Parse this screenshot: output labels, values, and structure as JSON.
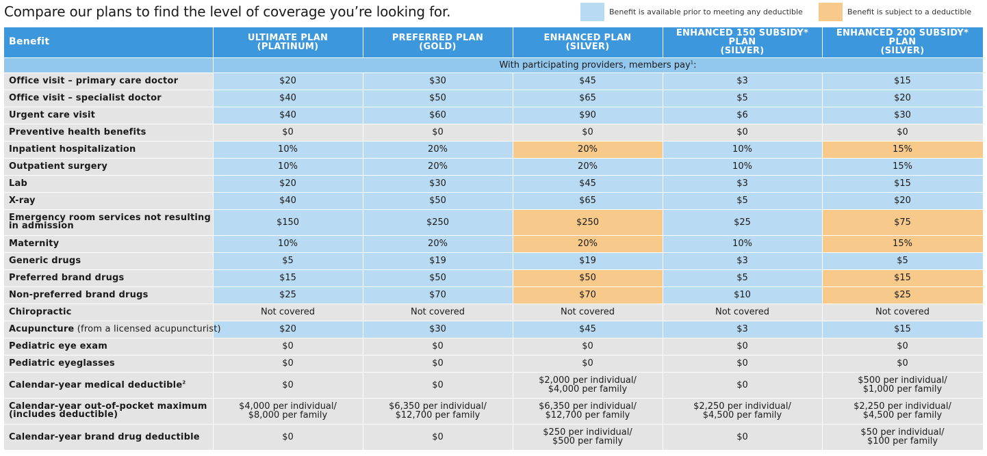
{
  "title": "Compare our plans to find the level of coverage you’re looking for.",
  "legend": {
    "available": {
      "label": "Benefit is available prior to meeting any deductible",
      "color": "#b8daf3"
    },
    "deductible": {
      "label": "Benefit is subject to a deductible",
      "color": "#f7c98a"
    }
  },
  "table": {
    "benefit_header": "Benefit",
    "plans": [
      {
        "line1": "ULTIMATE PLAN",
        "line2": "(PLATINUM)"
      },
      {
        "line1": "PREFERRED PLAN",
        "line2": "(GOLD)"
      },
      {
        "line1": "ENHANCED PLAN",
        "line2": "(SILVER)"
      },
      {
        "line1": "ENHANCED 150 SUBSIDY* PLAN",
        "line2": "(SILVER)"
      },
      {
        "line1": "ENHANCED 200 SUBSIDY* PLAN",
        "line2": "(SILVER)"
      }
    ],
    "subheader": "With participating providers, members pay",
    "subheader_mark": "1",
    "subheader_tail": ":",
    "rows": [
      {
        "benefit": "Office visit – primary care doctor",
        "values": [
          "$20",
          "$30",
          "$45",
          "$3",
          "$15"
        ]
      },
      {
        "benefit": "Office visit – specialist doctor",
        "values": [
          "$40",
          "$50",
          "$65",
          "$5",
          "$20"
        ]
      },
      {
        "benefit": "Urgent care visit",
        "values": [
          "$40",
          "$60",
          "$90",
          "$6",
          "$30"
        ]
      },
      {
        "benefit": "Preventive health benefits",
        "values": [
          "$0",
          "$0",
          "$0",
          "$0",
          "$0"
        ]
      },
      {
        "benefit": "Inpatient hospitalization",
        "values": [
          "10%",
          "20%",
          "20%",
          "10%",
          "15%"
        ]
      },
      {
        "benefit": "Outpatient surgery",
        "values": [
          "10%",
          "20%",
          "20%",
          "10%",
          "15%"
        ]
      },
      {
        "benefit": "Lab",
        "values": [
          "$20",
          "$30",
          "$45",
          "$3",
          "$15"
        ]
      },
      {
        "benefit": "X-ray",
        "values": [
          "$40",
          "$50",
          "$65",
          "$5",
          "$20"
        ]
      },
      {
        "benefit": "Emergency room services not resulting in admission",
        "values": [
          "$150",
          "$250",
          "$250",
          "$25",
          "$75"
        ]
      },
      {
        "benefit": "Maternity",
        "values": [
          "10%",
          "20%",
          "20%",
          "10%",
          "15%"
        ]
      },
      {
        "benefit": "Generic drugs",
        "values": [
          "$5",
          "$19",
          "$19",
          "$3",
          "$5"
        ]
      },
      {
        "benefit": "Preferred brand drugs",
        "values": [
          "$15",
          "$50",
          "$50",
          "$5",
          "$15"
        ]
      },
      {
        "benefit": "Non-preferred brand drugs",
        "values": [
          "$25",
          "$70",
          "$70",
          "$10",
          "$25"
        ]
      },
      {
        "benefit": "Chiropractic",
        "values": [
          "Not covered",
          "Not covered",
          "Not covered",
          "Not covered",
          "Not covered"
        ]
      },
      {
        "benefit": "Acupuncture",
        "benefit_note": " (from a licensed acupuncturist)",
        "values": [
          "$20",
          "$30",
          "$45",
          "$3",
          "$15"
        ]
      },
      {
        "benefit": "Pediatric eye exam",
        "values": [
          "$0",
          "$0",
          "$0",
          "$0",
          "$0"
        ]
      },
      {
        "benefit": "Pediatric eyeglasses",
        "values": [
          "$0",
          "$0",
          "$0",
          "$0",
          "$0"
        ]
      },
      {
        "benefit": "Calendar-year medical deductible",
        "benefit_mark": "2",
        "values": [
          [
            "$0"
          ],
          [
            "$0"
          ],
          [
            "$2,000 per individual/",
            "$4,000 per family"
          ],
          [
            "$0"
          ],
          [
            "$500 per individual/",
            "$1,000 per family"
          ]
        ]
      },
      {
        "benefit": "Calendar-year out-of-pocket maximum (includes deductible)",
        "values": [
          [
            "$4,000 per individual/",
            "$8,000 per family"
          ],
          [
            "$6,350 per individual/",
            "$12,700 per family"
          ],
          [
            "$6,350 per individual/",
            "$12,700 per family"
          ],
          [
            "$2,250 per individual/",
            "$4,500 per family"
          ],
          [
            "$2,250 per individual/",
            "$4,500 per family"
          ]
        ]
      },
      {
        "benefit": "Calendar-year brand drug deductible",
        "values": [
          [
            "$0"
          ],
          [
            "$0"
          ],
          [
            "$250 per individual/",
            "$500 per family"
          ],
          [
            "$0"
          ],
          [
            "$50 per individual/",
            "$100 per family"
          ]
        ]
      }
    ]
  }
}
